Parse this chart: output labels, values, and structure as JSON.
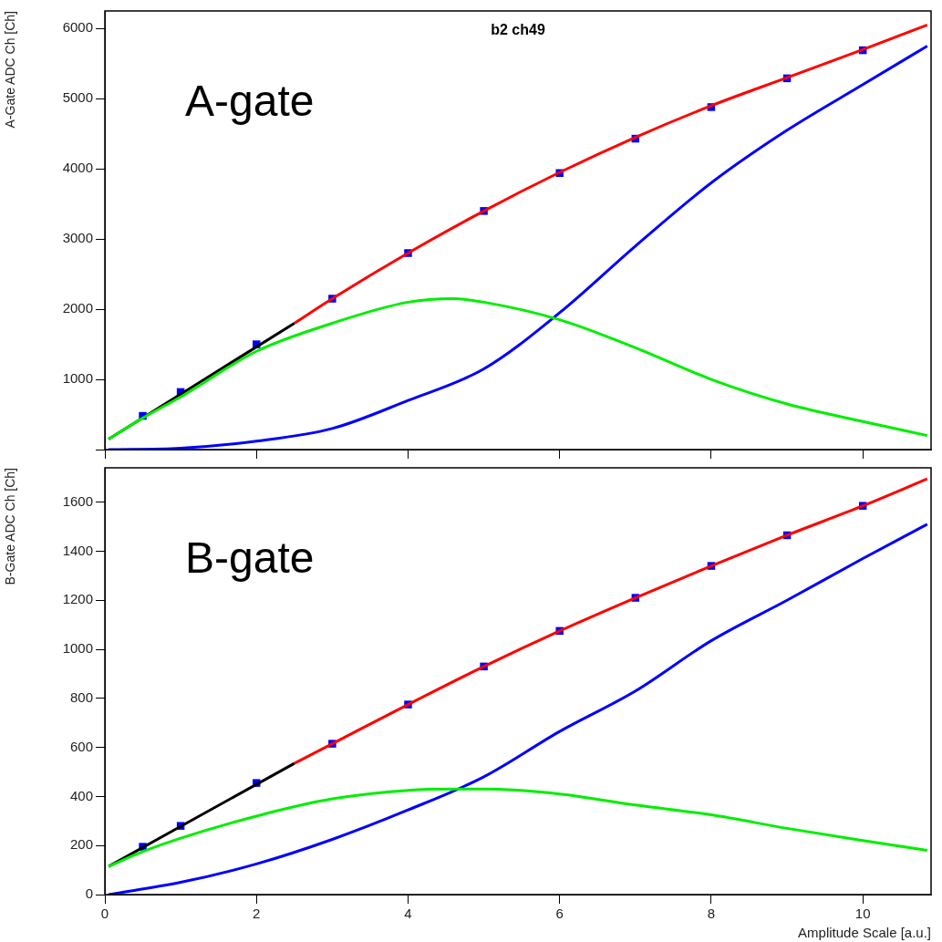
{
  "chart_data": [
    {
      "type": "line",
      "title": "b2 ch49",
      "ylabel": "A-Gate ADC Ch [Ch]",
      "annotations": [
        "A-gate"
      ],
      "xlim": [
        0,
        10.9
      ],
      "xticks": [
        0,
        2,
        4,
        6,
        8,
        10
      ],
      "ylim": [
        0,
        6250
      ],
      "yticks": [
        {
          "value": 0,
          "label": null
        },
        1000,
        2000,
        3000,
        4000,
        5000,
        6000
      ],
      "tick_labels": "y",
      "grid": false,
      "legend": false,
      "series": [
        {
          "color": "#00ee00",
          "x": [
            0.05,
            0.5,
            1,
            2,
            3,
            4,
            4.6,
            5,
            6,
            7,
            8,
            9,
            10,
            10.85
          ],
          "values": [
            150,
            450,
            750,
            1400,
            1800,
            2100,
            2150,
            2100,
            1850,
            1450,
            1000,
            650,
            400,
            200
          ]
        },
        {
          "color": "#0000ff",
          "x": [
            0.05,
            1,
            2,
            3,
            4,
            5,
            6,
            7,
            8,
            9,
            10,
            10.85
          ],
          "values": [
            0,
            20,
            120,
            300,
            700,
            1150,
            1950,
            2900,
            3800,
            4550,
            5200,
            5750
          ]
        },
        {
          "color": "#000000",
          "x": [
            0.05,
            2.5
          ],
          "values": [
            150,
            1800
          ]
        },
        {
          "color": "#ff0000",
          "x": [
            2.5,
            3,
            4,
            5,
            6,
            7,
            8,
            9,
            10,
            10.85
          ],
          "values": [
            1800,
            2150,
            2800,
            3400,
            3950,
            4450,
            4900,
            5300,
            5700,
            6050
          ]
        },
        {
          "type": "scatter",
          "marker": "square",
          "color": "#0000ff",
          "x": [
            0.5,
            1,
            2,
            3,
            4,
            5,
            6,
            7,
            8,
            9,
            10
          ],
          "values": [
            480,
            820,
            1500,
            2150,
            2800,
            3400,
            3940,
            4430,
            4880,
            5290,
            5690
          ]
        }
      ]
    },
    {
      "type": "line",
      "xlabel": "Amplitude Scale [a.u.]",
      "ylabel": "B-Gate ADC Ch [Ch]",
      "annotations": [
        "B-gate"
      ],
      "xlim": [
        0,
        10.9
      ],
      "xticks": [
        0,
        2,
        4,
        6,
        8,
        10
      ],
      "ylim": [
        0,
        1740
      ],
      "yticks": [
        0,
        200,
        400,
        600,
        800,
        1000,
        1200,
        1400,
        1600
      ],
      "grid": false,
      "legend": false,
      "series": [
        {
          "color": "#00ee00",
          "x": [
            0.05,
            0.5,
            1,
            2,
            3,
            4,
            4.6,
            5,
            6,
            7,
            8,
            9,
            10,
            10.85
          ],
          "values": [
            115,
            175,
            230,
            320,
            390,
            425,
            430,
            430,
            410,
            365,
            325,
            270,
            220,
            180
          ]
        },
        {
          "color": "#0000ff",
          "x": [
            0.05,
            1,
            2,
            3,
            4,
            5,
            6,
            7,
            8,
            9,
            10,
            10.85
          ],
          "values": [
            0,
            50,
            125,
            225,
            345,
            480,
            665,
            830,
            1035,
            1200,
            1370,
            1510
          ]
        },
        {
          "color": "#000000",
          "x": [
            0.05,
            2.5
          ],
          "values": [
            115,
            535
          ]
        },
        {
          "color": "#ff0000",
          "x": [
            2.5,
            3,
            4,
            5,
            6,
            7,
            8,
            9,
            10,
            10.85
          ],
          "values": [
            535,
            615,
            775,
            930,
            1075,
            1210,
            1340,
            1465,
            1585,
            1695
          ]
        },
        {
          "type": "scatter",
          "marker": "square",
          "color": "#0000ff",
          "x": [
            0.5,
            1,
            2,
            3,
            4,
            5,
            6,
            7,
            8,
            9,
            10
          ],
          "values": [
            195,
            280,
            455,
            615,
            775,
            930,
            1075,
            1210,
            1340,
            1465,
            1585
          ]
        }
      ]
    }
  ]
}
